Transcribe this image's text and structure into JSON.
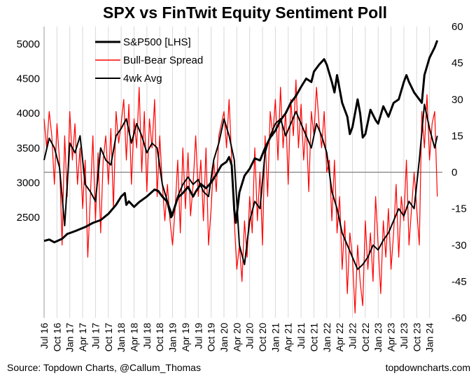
{
  "chart_data": {
    "type": "line",
    "title": "SPX vs FinTwit Equity Sentiment Poll",
    "source": "Source: Topdown Charts, @Callum_Thomas",
    "website": "topdowncharts.com",
    "legend": {
      "placement": "top-left",
      "entries": [
        {
          "name": "S&P500 [LHS]",
          "color": "#000000"
        },
        {
          "name": "Bull-Bear Spread",
          "color": "#ff0000"
        },
        {
          "name": "4wk Avg",
          "color": "#000000"
        }
      ]
    },
    "x_range": [
      2016.5,
      2024.25
    ],
    "x_ticks": [
      {
        "label": "Jul 16",
        "t": 2016.5
      },
      {
        "label": "Oct 16",
        "t": 2016.75
      },
      {
        "label": "Jan 17",
        "t": 2017.0
      },
      {
        "label": "Apr 17",
        "t": 2017.25
      },
      {
        "label": "Jul 17",
        "t": 2017.5
      },
      {
        "label": "Oct 17",
        "t": 2017.75
      },
      {
        "label": "Jan 18",
        "t": 2018.0
      },
      {
        "label": "Apr 18",
        "t": 2018.25
      },
      {
        "label": "Jul 18",
        "t": 2018.5
      },
      {
        "label": "Oct 18",
        "t": 2018.75
      },
      {
        "label": "Jan 19",
        "t": 2019.0
      },
      {
        "label": "Apr 19",
        "t": 2019.25
      },
      {
        "label": "Jul 19",
        "t": 2019.5
      },
      {
        "label": "Oct 19",
        "t": 2019.75
      },
      {
        "label": "Jan 20",
        "t": 2020.0
      },
      {
        "label": "Apr 20",
        "t": 2020.25
      },
      {
        "label": "Jul 20",
        "t": 2020.5
      },
      {
        "label": "Oct 20",
        "t": 2020.75
      },
      {
        "label": "Jan 21",
        "t": 2021.0
      },
      {
        "label": "Apr 21",
        "t": 2021.25
      },
      {
        "label": "Jul 21",
        "t": 2021.5
      },
      {
        "label": "Oct 21",
        "t": 2021.75
      },
      {
        "label": "Jan 22",
        "t": 2022.0
      },
      {
        "label": "Apr 22",
        "t": 2022.25
      },
      {
        "label": "Jul 22",
        "t": 2022.5
      },
      {
        "label": "Oct 22",
        "t": 2022.75
      },
      {
        "label": "Jan 23",
        "t": 2023.0
      },
      {
        "label": "Apr 23",
        "t": 2023.25
      },
      {
        "label": "Jul 23",
        "t": 2023.5
      },
      {
        "label": "Oct 23",
        "t": 2023.75
      },
      {
        "label": "Jan 24",
        "t": 2024.0
      }
    ],
    "left_axis": {
      "label": "S&P500",
      "range": [
        1050,
        5250
      ],
      "ticks": [
        2500,
        3000,
        3500,
        4000,
        4500,
        5000
      ]
    },
    "right_axis": {
      "label": "Bull-Bear Spread",
      "range": [
        -60,
        60
      ],
      "ticks": [
        60,
        45,
        30,
        15,
        0,
        -15,
        -30,
        -45,
        -60
      ],
      "zero_line": 0
    },
    "series": [
      {
        "name": "S&P500 [LHS]",
        "axis": "left",
        "color": "#000000",
        "stroke": "thick",
        "x": [
          2016.5,
          2016.6,
          2016.7,
          2016.85,
          2016.95,
          2017.1,
          2017.3,
          2017.45,
          2017.6,
          2017.75,
          2017.9,
          2018.0,
          2018.07,
          2018.1,
          2018.15,
          2018.25,
          2018.35,
          2018.5,
          2018.65,
          2018.72,
          2018.8,
          2018.9,
          2018.97,
          2019.0,
          2019.1,
          2019.2,
          2019.3,
          2019.4,
          2019.45,
          2019.55,
          2019.65,
          2019.75,
          2019.85,
          2019.95,
          2020.05,
          2020.1,
          2020.15,
          2020.2,
          2020.23,
          2020.3,
          2020.4,
          2020.5,
          2020.6,
          2020.7,
          2020.8,
          2020.9,
          2021.0,
          2021.1,
          2021.2,
          2021.3,
          2021.4,
          2021.5,
          2021.6,
          2021.7,
          2021.75,
          2021.85,
          2021.95,
          2022.0,
          2022.1,
          2022.15,
          2022.2,
          2022.3,
          2022.4,
          2022.45,
          2022.5,
          2022.6,
          2022.65,
          2022.7,
          2022.75,
          2022.85,
          2022.95,
          2023.0,
          2023.1,
          2023.2,
          2023.3,
          2023.4,
          2023.5,
          2023.55,
          2023.6,
          2023.7,
          2023.8,
          2023.85,
          2023.9,
          2024.0,
          2024.1,
          2024.15
        ],
        "values": [
          2160,
          2180,
          2140,
          2190,
          2260,
          2300,
          2360,
          2420,
          2460,
          2550,
          2680,
          2800,
          2850,
          2680,
          2730,
          2650,
          2720,
          2800,
          2900,
          2880,
          2800,
          2720,
          2500,
          2550,
          2780,
          2850,
          2940,
          2800,
          2870,
          2980,
          2920,
          3000,
          3120,
          3250,
          3300,
          3370,
          3250,
          2600,
          2420,
          2860,
          3100,
          3200,
          3350,
          3320,
          3500,
          3650,
          3750,
          3900,
          4000,
          4150,
          4250,
          4380,
          4500,
          4450,
          4600,
          4700,
          4780,
          4700,
          4450,
          4300,
          4550,
          4150,
          3950,
          3700,
          3800,
          4200,
          4000,
          3650,
          3700,
          4050,
          3900,
          3850,
          4100,
          3950,
          4150,
          4200,
          4450,
          4550,
          4450,
          4300,
          4200,
          4150,
          4550,
          4800,
          4950,
          5050
        ]
      },
      {
        "name": "Bull-Bear Spread",
        "axis": "right",
        "color": "#ff0000",
        "stroke": "thin",
        "x": [
          2016.5,
          2016.55,
          2016.6,
          2016.65,
          2016.7,
          2016.75,
          2016.8,
          2016.85,
          2016.9,
          2016.95,
          2017.0,
          2017.05,
          2017.1,
          2017.15,
          2017.2,
          2017.25,
          2017.3,
          2017.35,
          2017.4,
          2017.45,
          2017.5,
          2017.55,
          2017.6,
          2017.65,
          2017.7,
          2017.75,
          2017.8,
          2017.85,
          2017.9,
          2017.95,
          2018.0,
          2018.05,
          2018.1,
          2018.15,
          2018.2,
          2018.25,
          2018.3,
          2018.35,
          2018.4,
          2018.45,
          2018.5,
          2018.55,
          2018.6,
          2018.65,
          2018.7,
          2018.75,
          2018.8,
          2018.85,
          2018.9,
          2018.95,
          2019.0,
          2019.05,
          2019.1,
          2019.15,
          2019.2,
          2019.25,
          2019.3,
          2019.35,
          2019.4,
          2019.45,
          2019.5,
          2019.55,
          2019.6,
          2019.65,
          2019.7,
          2019.75,
          2019.8,
          2019.85,
          2019.9,
          2019.95,
          2020.0,
          2020.05,
          2020.1,
          2020.15,
          2020.2,
          2020.25,
          2020.3,
          2020.35,
          2020.4,
          2020.45,
          2020.5,
          2020.55,
          2020.6,
          2020.65,
          2020.7,
          2020.75,
          2020.8,
          2020.85,
          2020.9,
          2020.95,
          2021.0,
          2021.05,
          2021.1,
          2021.15,
          2021.2,
          2021.25,
          2021.3,
          2021.35,
          2021.4,
          2021.45,
          2021.5,
          2021.55,
          2021.6,
          2021.65,
          2021.7,
          2021.75,
          2021.8,
          2021.85,
          2021.9,
          2021.95,
          2022.0,
          2022.05,
          2022.1,
          2022.15,
          2022.2,
          2022.25,
          2022.3,
          2022.35,
          2022.4,
          2022.45,
          2022.5,
          2022.55,
          2022.6,
          2022.65,
          2022.7,
          2022.75,
          2022.8,
          2022.85,
          2022.9,
          2022.95,
          2023.0,
          2023.05,
          2023.1,
          2023.15,
          2023.2,
          2023.25,
          2023.3,
          2023.35,
          2023.4,
          2023.45,
          2023.5,
          2023.55,
          2023.6,
          2023.65,
          2023.7,
          2023.75,
          2023.8,
          2023.85,
          2023.9,
          2023.95,
          2024.0,
          2024.05,
          2024.1,
          2024.15
        ],
        "values": [
          22,
          10,
          25,
          15,
          -5,
          20,
          5,
          -30,
          15,
          -10,
          25,
          5,
          20,
          -5,
          10,
          -15,
          5,
          -35,
          -10,
          15,
          -20,
          8,
          -25,
          5,
          15,
          -5,
          18,
          -15,
          25,
          12,
          20,
          30,
          5,
          28,
          -5,
          22,
          10,
          35,
          0,
          25,
          -8,
          22,
          10,
          30,
          -10,
          15,
          -5,
          -20,
          -5,
          -20,
          -30,
          -15,
          5,
          -25,
          10,
          -15,
          8,
          -18,
          -5,
          15,
          -10,
          5,
          -20,
          10,
          -30,
          -15,
          5,
          -8,
          15,
          20,
          25,
          10,
          30,
          5,
          -20,
          -40,
          -30,
          -45,
          -20,
          -35,
          -10,
          -25,
          10,
          -20,
          0,
          -30,
          15,
          -10,
          25,
          15,
          30,
          5,
          35,
          10,
          25,
          -5,
          30,
          15,
          38,
          10,
          28,
          5,
          20,
          -8,
          25,
          15,
          35,
          20,
          10,
          25,
          0,
          5,
          -20,
          5,
          -25,
          -10,
          -40,
          -20,
          -50,
          -25,
          -35,
          -58,
          -30,
          -45,
          -55,
          -20,
          -40,
          -25,
          -45,
          -10,
          -30,
          -50,
          -20,
          -35,
          -15,
          -40,
          -25,
          -5,
          -35,
          -10,
          -20,
          5,
          -30,
          -15,
          0,
          -15,
          -30,
          25,
          10,
          32,
          5,
          20,
          25,
          -10
        ],
        "note": "weekly spikes smoothed to representative peaks/troughs"
      },
      {
        "name": "4wk Avg",
        "axis": "right",
        "color": "#000000",
        "stroke": "medium",
        "x": [
          2016.5,
          2016.6,
          2016.7,
          2016.8,
          2016.9,
          2017.0,
          2017.1,
          2017.2,
          2017.3,
          2017.4,
          2017.5,
          2017.6,
          2017.7,
          2017.8,
          2017.9,
          2018.0,
          2018.1,
          2018.2,
          2018.3,
          2018.4,
          2018.5,
          2018.6,
          2018.7,
          2018.8,
          2018.9,
          2019.0,
          2019.1,
          2019.2,
          2019.3,
          2019.4,
          2019.5,
          2019.6,
          2019.7,
          2019.8,
          2019.9,
          2020.0,
          2020.1,
          2020.2,
          2020.3,
          2020.4,
          2020.5,
          2020.6,
          2020.7,
          2020.8,
          2020.9,
          2021.0,
          2021.1,
          2021.2,
          2021.3,
          2021.4,
          2021.5,
          2021.6,
          2021.7,
          2021.8,
          2021.9,
          2022.0,
          2022.1,
          2022.2,
          2022.3,
          2022.4,
          2022.5,
          2022.6,
          2022.7,
          2022.8,
          2022.9,
          2023.0,
          2023.1,
          2023.2,
          2023.3,
          2023.4,
          2023.5,
          2023.6,
          2023.7,
          2023.8,
          2023.9,
          2024.0,
          2024.1,
          2024.15
        ],
        "values": [
          5,
          14,
          10,
          2,
          -22,
          12,
          8,
          15,
          -5,
          -8,
          -12,
          10,
          5,
          3,
          15,
          18,
          22,
          12,
          20,
          15,
          8,
          12,
          10,
          -5,
          -12,
          -18,
          -10,
          -5,
          -2,
          -5,
          -3,
          -8,
          -10,
          5,
          12,
          22,
          15,
          5,
          -30,
          -38,
          -20,
          -12,
          -15,
          8,
          15,
          20,
          22,
          15,
          20,
          25,
          20,
          15,
          10,
          20,
          15,
          8,
          -8,
          -15,
          -25,
          -30,
          -35,
          -40,
          -38,
          -35,
          -30,
          -32,
          -28,
          -25,
          -20,
          -15,
          -18,
          -12,
          -15,
          5,
          28,
          18,
          10,
          15
        ]
      }
    ]
  }
}
